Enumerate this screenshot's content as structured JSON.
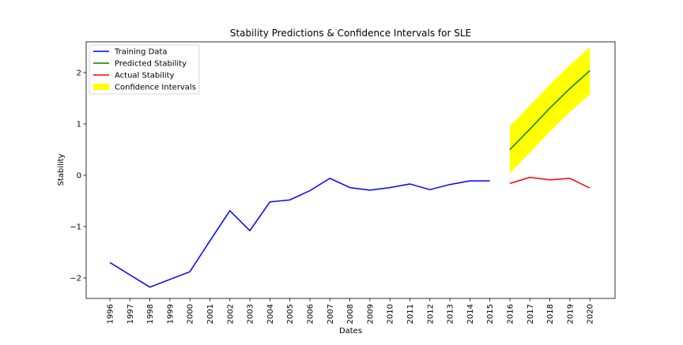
{
  "chart_data": {
    "type": "line",
    "title": "Stability Predictions & Confidence Intervals for SLE",
    "xlabel": "Dates",
    "ylabel": "Stability",
    "ylim": [
      -2.4,
      2.6
    ],
    "yticks": [
      -2,
      -1,
      0,
      1,
      2
    ],
    "ytick_labels": [
      "−2",
      "−1",
      "0",
      "1",
      "2"
    ],
    "categories": [
      "1996",
      "1997",
      "1998",
      "1999",
      "2000",
      "2001",
      "2002",
      "2003",
      "2004",
      "2005",
      "2006",
      "2007",
      "2008",
      "2009",
      "2010",
      "2011",
      "2012",
      "2013",
      "2014",
      "2015",
      "2016",
      "2017",
      "2018",
      "2019",
      "2020"
    ],
    "legend_position": "upper-left",
    "grid": false,
    "series": [
      {
        "name": "Training Data",
        "color": "#0000ff",
        "x": [
          "1996",
          "1997",
          "1998",
          "1999",
          "2000",
          "2001",
          "2002",
          "2003",
          "2004",
          "2005",
          "2006",
          "2007",
          "2008",
          "2009",
          "2010",
          "2011",
          "2012",
          "2013",
          "2014",
          "2015"
        ],
        "values": [
          -1.7,
          -1.94,
          -2.18,
          -2.03,
          -1.88,
          -1.28,
          -0.69,
          -1.08,
          -0.52,
          -0.48,
          -0.3,
          -0.06,
          -0.24,
          -0.29,
          -0.24,
          -0.17,
          -0.28,
          -0.18,
          -0.11,
          -0.11
        ]
      },
      {
        "name": "Predicted Stability",
        "color": "#008000",
        "x": [
          "2016",
          "2017",
          "2018",
          "2019",
          "2020"
        ],
        "values": [
          0.5,
          0.9,
          1.31,
          1.69,
          2.04
        ]
      },
      {
        "name": "Actual Stability",
        "color": "#ff0000",
        "x": [
          "2016",
          "2017",
          "2018",
          "2019",
          "2020"
        ],
        "values": [
          -0.16,
          -0.04,
          -0.09,
          -0.06,
          -0.25
        ]
      }
    ],
    "band": {
      "name": "Confidence Intervals",
      "color": "#ffff00",
      "x": [
        "2016",
        "2017",
        "2018",
        "2019",
        "2020"
      ],
      "lower": [
        0.04,
        0.44,
        0.85,
        1.23,
        1.58
      ],
      "upper": [
        0.96,
        1.36,
        1.77,
        2.15,
        2.5
      ]
    }
  }
}
